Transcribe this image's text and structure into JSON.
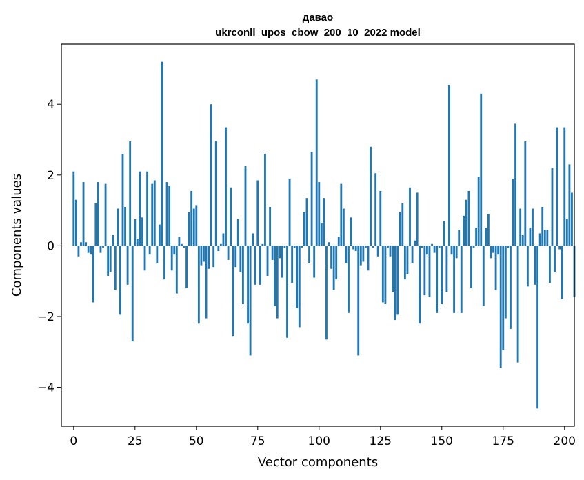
{
  "chart_data": {
    "type": "bar",
    "title": "давао",
    "subtitle": "ukrconll_upos_cbow_200_10_2022 model",
    "xlabel": "Vector components",
    "ylabel": "Components values",
    "xlim": [
      -5,
      204
    ],
    "ylim": [
      -5.1,
      5.7
    ],
    "xticks": [
      0,
      25,
      50,
      75,
      100,
      125,
      150,
      175,
      200
    ],
    "yticks": [
      -4,
      -2,
      0,
      2,
      4
    ],
    "grid": false,
    "bar_color": "#1f77b4",
    "series": [
      {
        "values": [
          2.1,
          1.3,
          -0.3,
          0.1,
          1.8,
          0.1,
          -0.2,
          -0.25,
          -1.6,
          1.2,
          1.8,
          -0.2,
          -0.05,
          1.75,
          -0.85,
          -0.75,
          0.3,
          -1.25,
          1.05,
          -1.95,
          2.6,
          1.1,
          -1.1,
          2.95,
          -2.7,
          0.75,
          0.2,
          2.1,
          0.8,
          -0.7,
          2.1,
          -0.25,
          1.75,
          1.85,
          -0.5,
          0.6,
          5.2,
          -0.95,
          1.8,
          1.7,
          -0.7,
          -0.25,
          -1.35,
          0.25,
          0.05,
          -0.05,
          -1.2,
          0.95,
          1.55,
          1.05,
          1.15,
          -2.2,
          -0.55,
          -0.45,
          -2.05,
          -0.65,
          4.0,
          -0.6,
          2.95,
          -0.15,
          0.05,
          0.35,
          3.35,
          -0.4,
          1.65,
          -2.55,
          -0.6,
          0.75,
          -0.75,
          -1.65,
          2.25,
          -2.2,
          -3.1,
          0.35,
          -1.1,
          1.85,
          -1.1,
          0.05,
          2.6,
          -0.85,
          1.1,
          -0.4,
          -1.7,
          -2.05,
          -0.35,
          -0.9,
          -0.05,
          -2.6,
          1.9,
          -1.05,
          -0.05,
          -1.75,
          -2.3,
          -0.05,
          0.95,
          1.35,
          -0.5,
          2.65,
          -0.9,
          4.7,
          1.8,
          0.65,
          1.35,
          -2.65,
          0.1,
          -0.65,
          -1.25,
          -0.95,
          0.25,
          1.75,
          1.05,
          -0.5,
          -1.9,
          0.8,
          -0.1,
          -0.15,
          -3.1,
          -0.55,
          -0.45,
          -0.05,
          -0.7,
          2.8,
          -0.05,
          2.05,
          -0.3,
          1.55,
          -1.6,
          -1.65,
          -0.05,
          -0.3,
          -1.3,
          -2.1,
          -1.95,
          0.95,
          1.2,
          -0.95,
          -0.8,
          1.65,
          -0.5,
          0.15,
          1.5,
          -2.2,
          -0.05,
          -1.4,
          -0.25,
          -1.45,
          0.05,
          -0.2,
          -1.9,
          -0.05,
          -1.65,
          0.7,
          -1.3,
          4.55,
          -0.25,
          -1.9,
          -0.35,
          0.45,
          -1.9,
          0.85,
          1.3,
          1.55,
          -1.2,
          -0.05,
          0.5,
          1.95,
          4.3,
          -1.7,
          0.5,
          0.9,
          -0.35,
          -0.2,
          -1.25,
          -0.25,
          -3.45,
          -2.95,
          -2.05,
          -0.05,
          -2.35,
          1.9,
          3.45,
          -3.3,
          1.05,
          0.3,
          2.95,
          -1.15,
          0.5,
          1.05,
          -1.1,
          -4.6,
          0.35,
          1.1,
          0.45,
          0.45,
          -1.05,
          2.2,
          -0.75,
          3.35,
          -0.1,
          -1.5,
          3.35,
          0.75,
          2.3,
          1.5,
          -1.45
        ]
      }
    ]
  }
}
